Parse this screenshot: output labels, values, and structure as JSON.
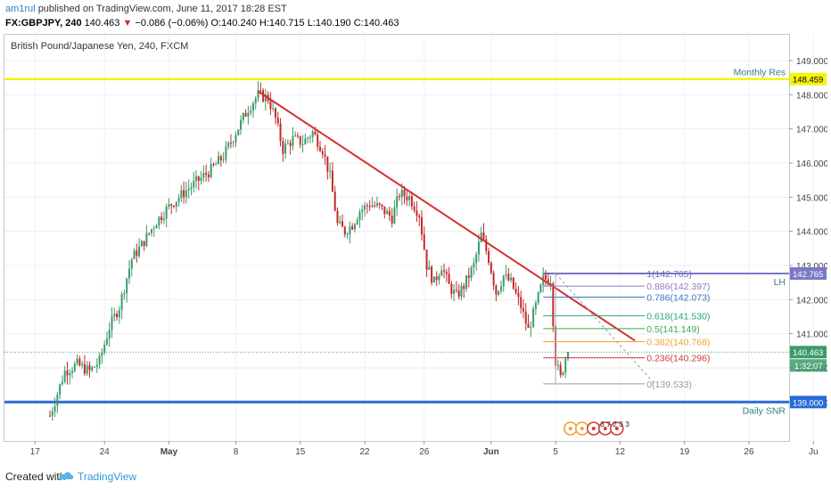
{
  "header": {
    "user": "am1rul",
    "published_text": "published on TradingView.com, June 11, 2017 18:28 EST"
  },
  "ohlc": {
    "symbol_interval": "FX:GBPJPY, 240",
    "last": "140.463",
    "change": "−0.086 (−0.06%)",
    "open": "O:140.240",
    "high": "H:140.715",
    "low": "L:140.190",
    "close": "C:140.463"
  },
  "footer": {
    "created_with": "Created with",
    "brand": "TradingView"
  },
  "colors": {
    "bull": "#3c9a6b",
    "bear": "#c62828",
    "trendline": "#d32f2f",
    "monthly_res": "#f5f50a",
    "daily_snr": "#2a6ad6",
    "lh_line": "#7a78c8"
  },
  "chart_data": {
    "type": "candlestick",
    "title": "British Pound/Japanese Yen, 240, FXCM",
    "ylim": [
      138.4,
      149.25
    ],
    "y_ticks": [
      "149.000",
      "148.000",
      "147.000",
      "146.000",
      "145.000",
      "144.000",
      "143.000",
      "142.000",
      "141.000",
      "140.000",
      "139.000"
    ],
    "x_ticks": [
      "17",
      "24",
      "May",
      "8",
      "15",
      "22",
      "26",
      "Jun",
      "5",
      "12",
      "19",
      "26",
      "Ju"
    ],
    "grid": true,
    "last_price": 140.463,
    "last_price_label": "140.463",
    "countdown_label": "1:32:07",
    "candles_description": "GBPJPY 4H candles approximated from Apr 17 to Jun 9 2017",
    "path_points": [
      [
        0,
        138.6
      ],
      [
        6,
        139.9
      ],
      [
        11,
        140.1
      ],
      [
        16,
        139.9
      ],
      [
        20,
        140.2
      ],
      [
        24,
        141.2
      ],
      [
        28,
        141.8
      ],
      [
        33,
        143.2
      ],
      [
        37,
        143.6
      ],
      [
        43,
        144.3
      ],
      [
        49,
        144.8
      ],
      [
        55,
        145.2
      ],
      [
        60,
        145.5
      ],
      [
        65,
        145.8
      ],
      [
        70,
        146.2
      ],
      [
        75,
        146.9
      ],
      [
        80,
        147.6
      ],
      [
        84,
        148.0
      ],
      [
        88,
        147.9
      ],
      [
        91,
        147.3
      ],
      [
        94,
        146.4
      ],
      [
        98,
        146.7
      ],
      [
        102,
        146.6
      ],
      [
        106,
        146.9
      ],
      [
        110,
        146.4
      ],
      [
        113,
        145.6
      ],
      [
        116,
        144.2
      ],
      [
        119,
        144.0
      ],
      [
        122,
        144.2
      ],
      [
        125,
        144.6
      ],
      [
        129,
        144.8
      ],
      [
        133,
        144.7
      ],
      [
        138,
        144.4
      ],
      [
        141,
        145.1
      ],
      [
        145,
        145.0
      ],
      [
        149,
        144.5
      ],
      [
        152,
        143.0
      ],
      [
        155,
        142.5
      ],
      [
        158,
        143.0
      ],
      [
        161,
        142.4
      ],
      [
        164,
        142.1
      ],
      [
        167,
        142.4
      ],
      [
        171,
        143.0
      ],
      [
        174,
        143.9
      ],
      [
        177,
        143.2
      ],
      [
        180,
        142.2
      ],
      [
        183,
        142.7
      ],
      [
        186,
        142.5
      ],
      [
        190,
        141.8
      ],
      [
        193,
        141.1
      ],
      [
        196,
        141.8
      ],
      [
        199,
        142.6
      ],
      [
        202,
        142.6
      ],
      [
        204,
        140.2
      ],
      [
        206,
        139.7
      ],
      [
        208,
        140.3
      ],
      [
        209,
        140.46
      ]
    ],
    "annotations": [
      {
        "label": "Monthly Res",
        "value": 148.459,
        "value_label": "148.459"
      },
      {
        "label": "Daily SNR",
        "value": 139.0,
        "value_label": "139.000"
      },
      {
        "label": "LH",
        "value": 142.765,
        "value_label": "142.765"
      }
    ],
    "trendline": {
      "from": [
        84,
        148.1
      ],
      "to": [
        236,
        140.8
      ]
    },
    "fibonacci": [
      {
        "ratio": "1",
        "value": 142.765,
        "label": "1(142.765)",
        "color": "#6f6ec0"
      },
      {
        "ratio": "0.886",
        "value": 142.397,
        "label": "0.886(142.397)",
        "color": "#8e7cc3"
      },
      {
        "ratio": "0.786",
        "value": 142.073,
        "label": "0.786(142.073)",
        "color": "#3b73c8"
      },
      {
        "ratio": "0.618",
        "value": 141.53,
        "label": "0.618(141.530)",
        "color": "#22a86b"
      },
      {
        "ratio": "0.5",
        "value": 141.149,
        "label": "0.5(141.149)",
        "color": "#3aa84e"
      },
      {
        "ratio": "0.382",
        "value": 140.768,
        "label": "0.382(140.768)",
        "color": "#f0a030"
      },
      {
        "ratio": "0.236",
        "value": 140.296,
        "label": "0.236(140.296)",
        "color": "#d13b3b"
      },
      {
        "ratio": "0",
        "value": 139.533,
        "label": "0(139.533)",
        "color": "#9a9a9a"
      }
    ],
    "event_markers": [
      "3",
      "7",
      "2",
      "3",
      "3"
    ]
  }
}
